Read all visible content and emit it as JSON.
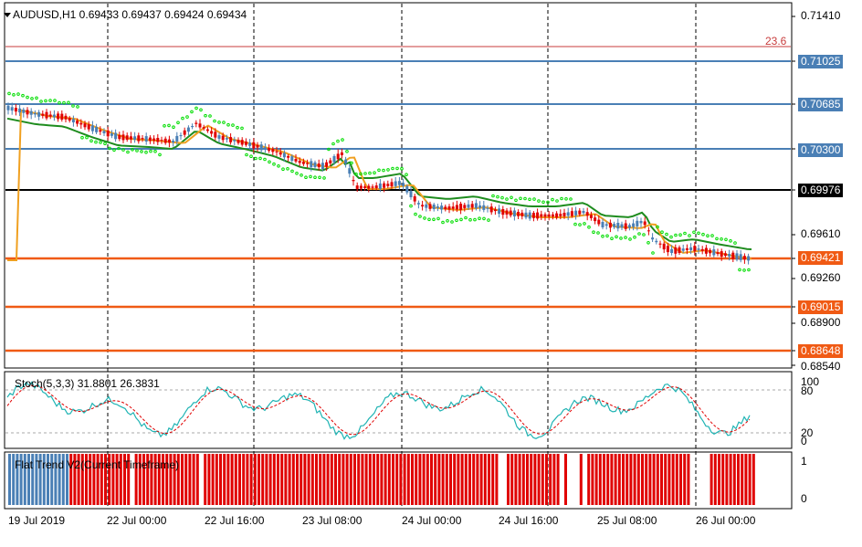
{
  "main_chart": {
    "title": "AUDUSD,H1  0.69433 0.69437 0.69424 0.69434",
    "fib_label": "23.6",
    "colors": {
      "bull": "#4a7fb5",
      "bear": "#e00000",
      "ma_fast": "#f0a020",
      "ma_slow": "#1e8c1e",
      "sar": "#00dd00",
      "level_blue": "#4a7fb5",
      "level_orange": "#f05a14",
      "fib": "#c83c3c"
    }
  },
  "price_axis": {
    "ticks": [
      "0.71410",
      "0.69610",
      "0.69260",
      "0.68900",
      "0.68540"
    ],
    "tags": [
      {
        "label": "0.71025",
        "color": "#4a7fb5"
      },
      {
        "label": "0.70685",
        "color": "#4a7fb5"
      },
      {
        "label": "0.70300",
        "color": "#4a7fb5"
      },
      {
        "label": "0.69976",
        "color": "#000000"
      },
      {
        "label": "0.69421",
        "color": "#f05a14"
      },
      {
        "label": "0.69015",
        "color": "#f05a14"
      },
      {
        "label": "0.68648",
        "color": "#f05a14"
      }
    ]
  },
  "stoch": {
    "label": "Stoch(5,3,3) 31.8801 26.3831",
    "axis": [
      "100",
      "80",
      "20",
      "0"
    ],
    "colors": {
      "main": "#20b4b4",
      "signal": "#e00000"
    }
  },
  "flat_trend": {
    "label": "Flat Trend V2(Current Timeframe)",
    "axis": [
      "1",
      "0"
    ]
  },
  "time_axis": [
    "19 Jul 2019",
    "22 Jul 00:00",
    "22 Jul 16:00",
    "23 Jul 08:00",
    "24 Jul 00:00",
    "24 Jul 16:00",
    "25 Jul 08:00",
    "26 Jul 00:00"
  ]
}
